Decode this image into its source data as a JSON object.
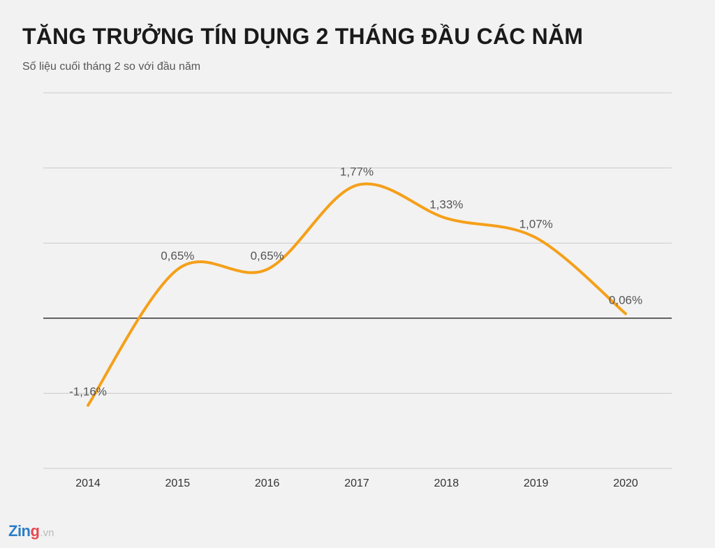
{
  "header": {
    "title": "TĂNG TRƯỞNG TÍN DỤNG 2 THÁNG ĐẦU CÁC NĂM",
    "subtitle": "Số liệu cuối tháng 2 so với đầu năm"
  },
  "logo": {
    "brand_main": "Zin",
    "brand_accent": "g",
    "brand_tld": ".vn"
  },
  "colors": {
    "line": "#f5a01a",
    "grid": "#c9c9c9",
    "zero_line": "#333333",
    "background": "#f2f2f2"
  },
  "chart_data": {
    "type": "line",
    "title": "TĂNG TRƯỞNG TÍN DỤNG 2 THÁNG ĐẦU CÁC NĂM",
    "subtitle": "Số liệu cuối tháng 2 so với đầu năm",
    "xlabel": "",
    "ylabel": "",
    "categories": [
      "2014",
      "2015",
      "2016",
      "2017",
      "2018",
      "2019",
      "2020"
    ],
    "values": [
      -1.16,
      0.65,
      0.65,
      1.77,
      1.33,
      1.07,
      0.06
    ],
    "data_labels": [
      "-1,16%",
      "0,65%",
      "0,65%",
      "1,77%",
      "1,33%",
      "1,07%",
      "0,06%"
    ],
    "ylim": [
      -2,
      3
    ],
    "grid": true,
    "smooth": true,
    "legend": "none"
  }
}
